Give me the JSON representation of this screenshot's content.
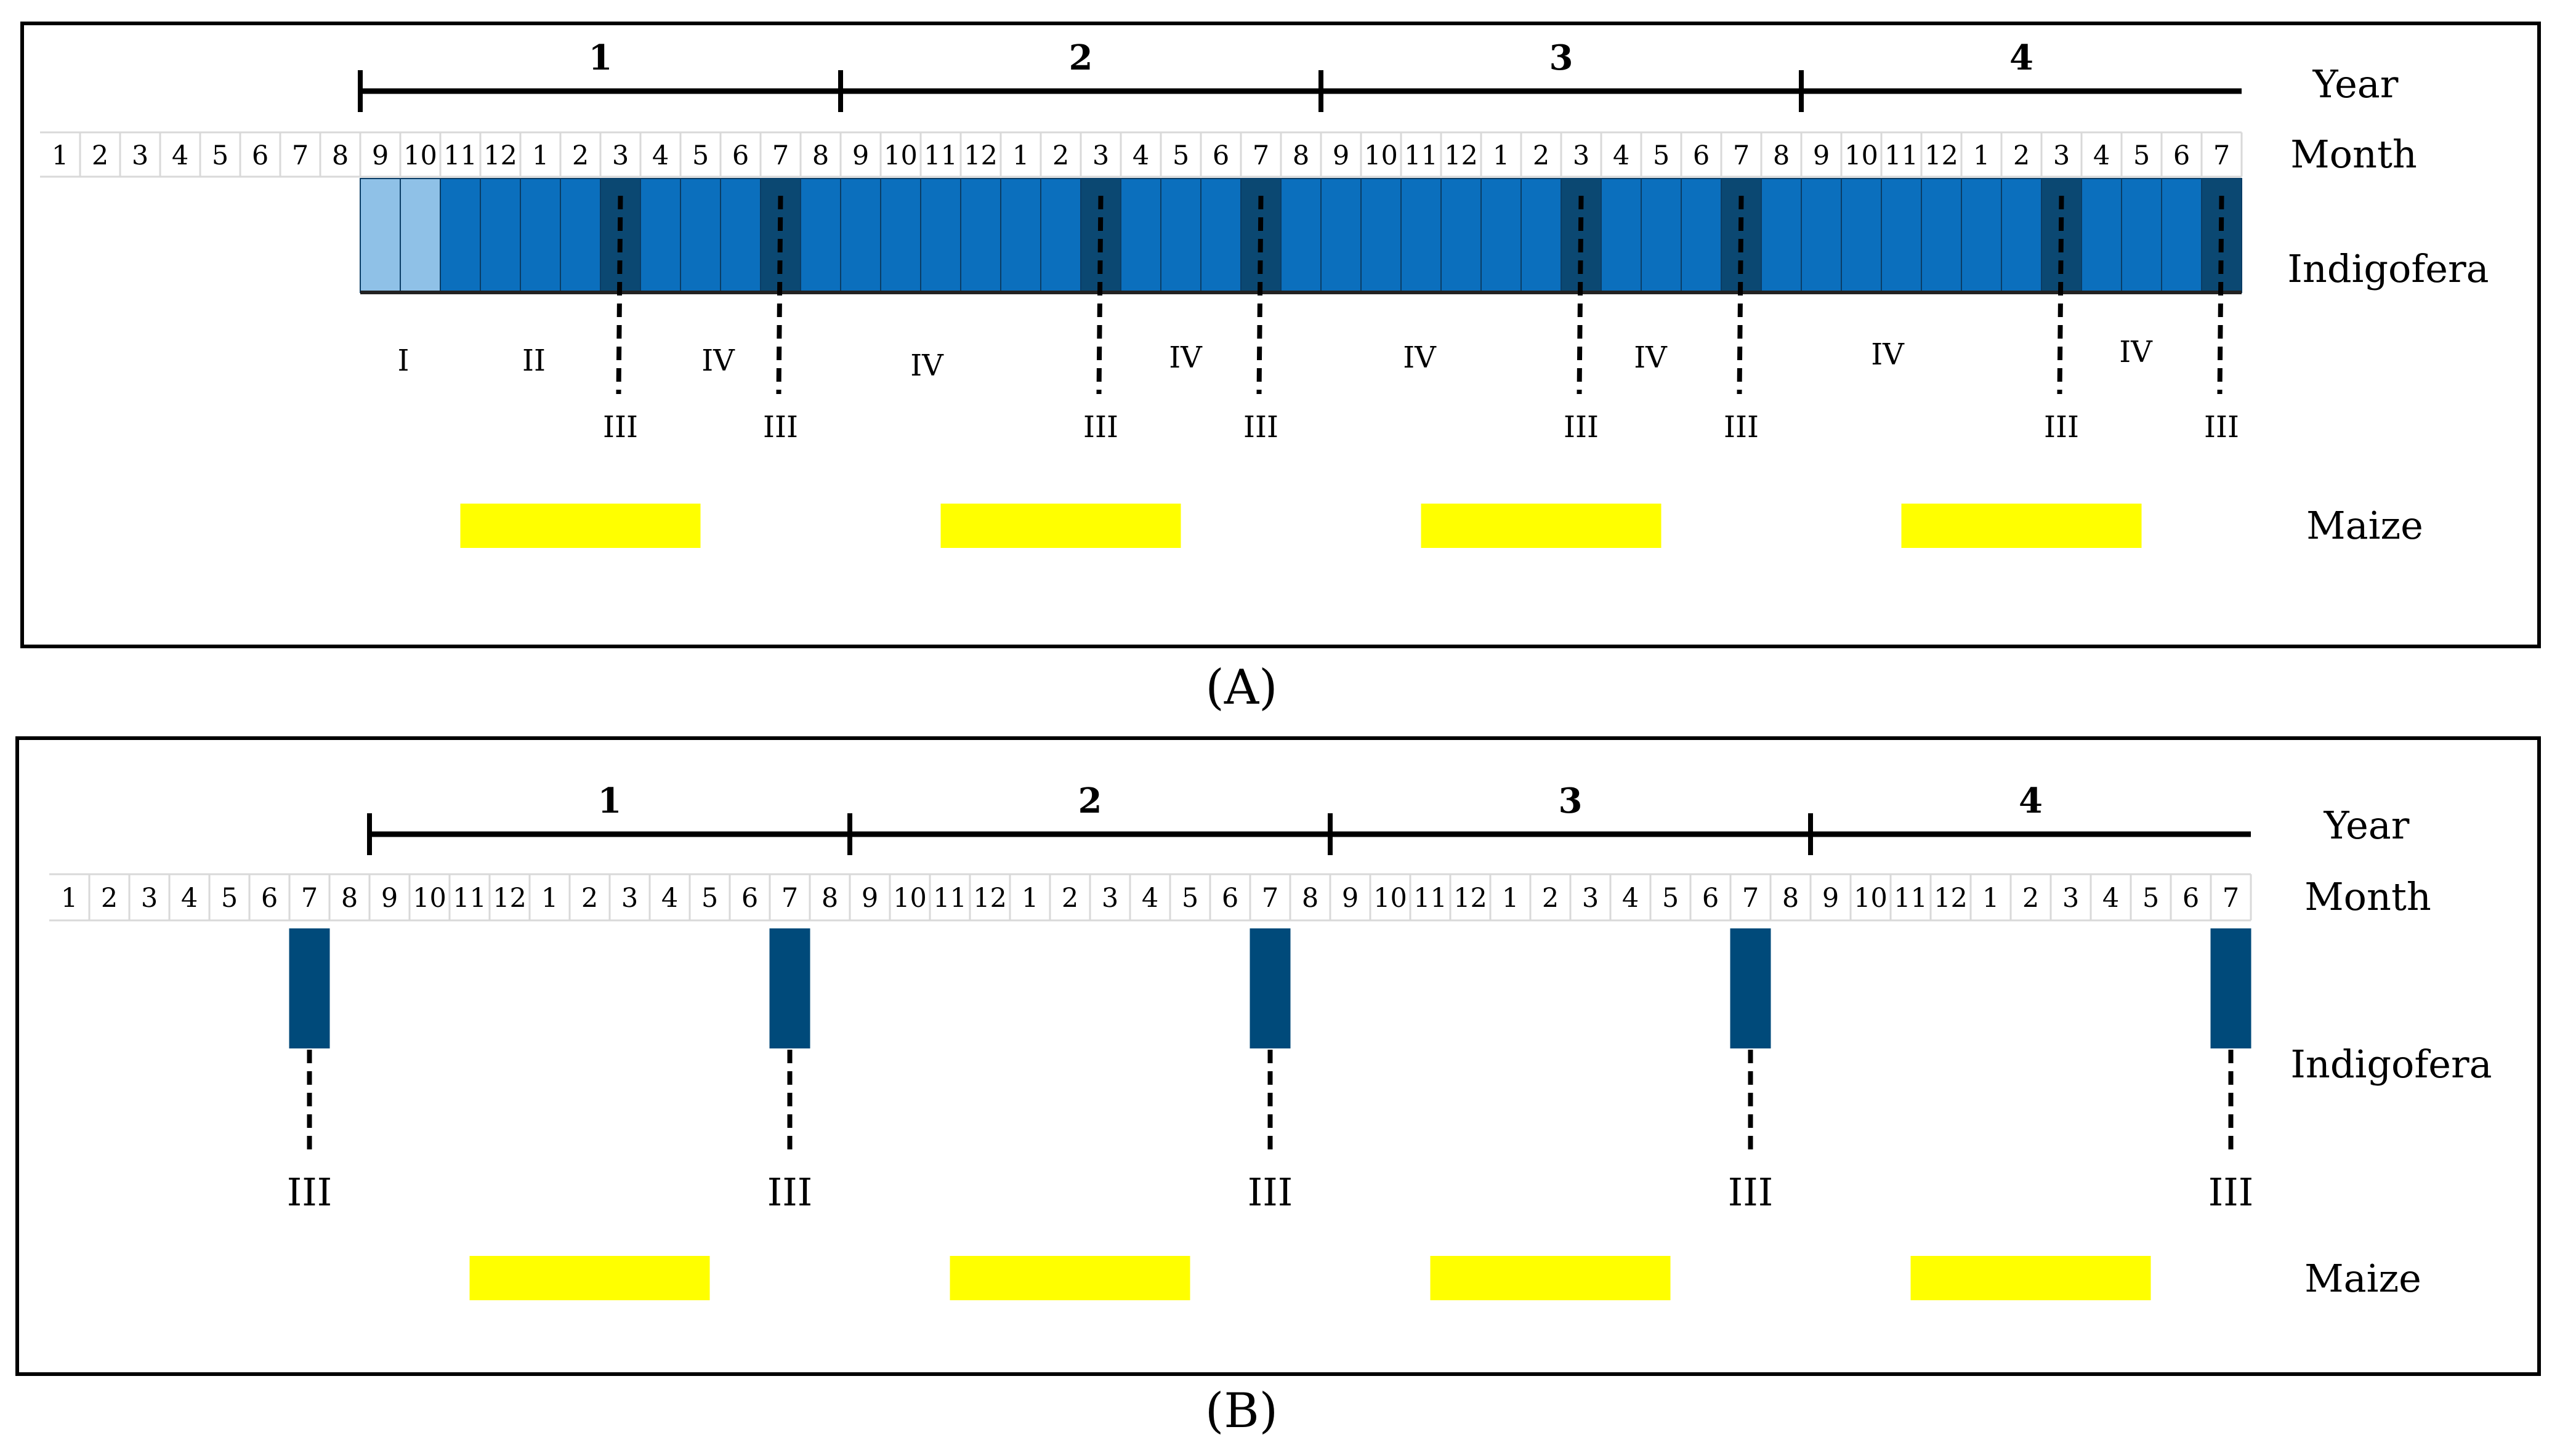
{
  "panels": [
    {
      "id": "A",
      "caption": "(A)",
      "labels": {
        "year": "Year",
        "month": "Month",
        "crop1": "Indigofera",
        "crop2": "Maize"
      },
      "years": [
        "1",
        "2",
        "3",
        "4"
      ],
      "months": [
        "1",
        "2",
        "3",
        "4",
        "5",
        "6",
        "7",
        "8",
        "9",
        "10",
        "11",
        "12",
        "1",
        "2",
        "3",
        "4",
        "5",
        "6",
        "7",
        "8",
        "9",
        "10",
        "11",
        "12",
        "1",
        "2",
        "3",
        "4",
        "5",
        "6",
        "7",
        "8",
        "9",
        "10",
        "11",
        "12",
        "1",
        "2",
        "3",
        "4",
        "5",
        "6",
        "7",
        "8",
        "9",
        "10",
        "11",
        "12",
        "1",
        "2",
        "3",
        "4",
        "5",
        "6",
        "7"
      ],
      "indigofera_first_month_index": 8,
      "indigofera_light_months": 2,
      "harvest_month_indices": [
        14,
        18,
        26,
        30,
        38,
        42,
        50,
        54
      ],
      "harvest_label": "III",
      "stage_labels": [
        "I",
        "II",
        "IV",
        "IV",
        "IV",
        "IV",
        "IV",
        "IV",
        "IV"
      ],
      "maize_periods": [
        [
          10.5,
          16.5
        ],
        [
          22.5,
          28.5
        ],
        [
          34.5,
          40.5
        ],
        [
          46.5,
          52.5
        ]
      ],
      "colors": {
        "light": "#8fc1e7",
        "medium": "#0b6fbd",
        "dark": "#0b4872",
        "maize": "#ffff00"
      }
    },
    {
      "id": "B",
      "caption": "(B)",
      "labels": {
        "year": "Year",
        "month": "Month",
        "crop1": "Indigofera",
        "crop2": "Maize"
      },
      "years": [
        "1",
        "2",
        "3",
        "4"
      ],
      "months": [
        "1",
        "2",
        "3",
        "4",
        "5",
        "6",
        "7",
        "8",
        "9",
        "10",
        "11",
        "12",
        "1",
        "2",
        "3",
        "4",
        "5",
        "6",
        "7",
        "8",
        "9",
        "10",
        "11",
        "12",
        "1",
        "2",
        "3",
        "4",
        "5",
        "6",
        "7",
        "8",
        "9",
        "10",
        "11",
        "12",
        "1",
        "2",
        "3",
        "4",
        "5",
        "6",
        "7",
        "8",
        "9",
        "10",
        "11",
        "12",
        "1",
        "2",
        "3",
        "4",
        "5",
        "6",
        "7"
      ],
      "harvest_month_indices": [
        6,
        18,
        30,
        42,
        54
      ],
      "harvest_label": "III",
      "maize_periods": [
        [
          10.5,
          16.5
        ],
        [
          22.5,
          28.5
        ],
        [
          34.5,
          40.5
        ],
        [
          46.5,
          52.5
        ]
      ],
      "colors": {
        "block": "#004a7a",
        "maize": "#ffff00"
      }
    }
  ]
}
